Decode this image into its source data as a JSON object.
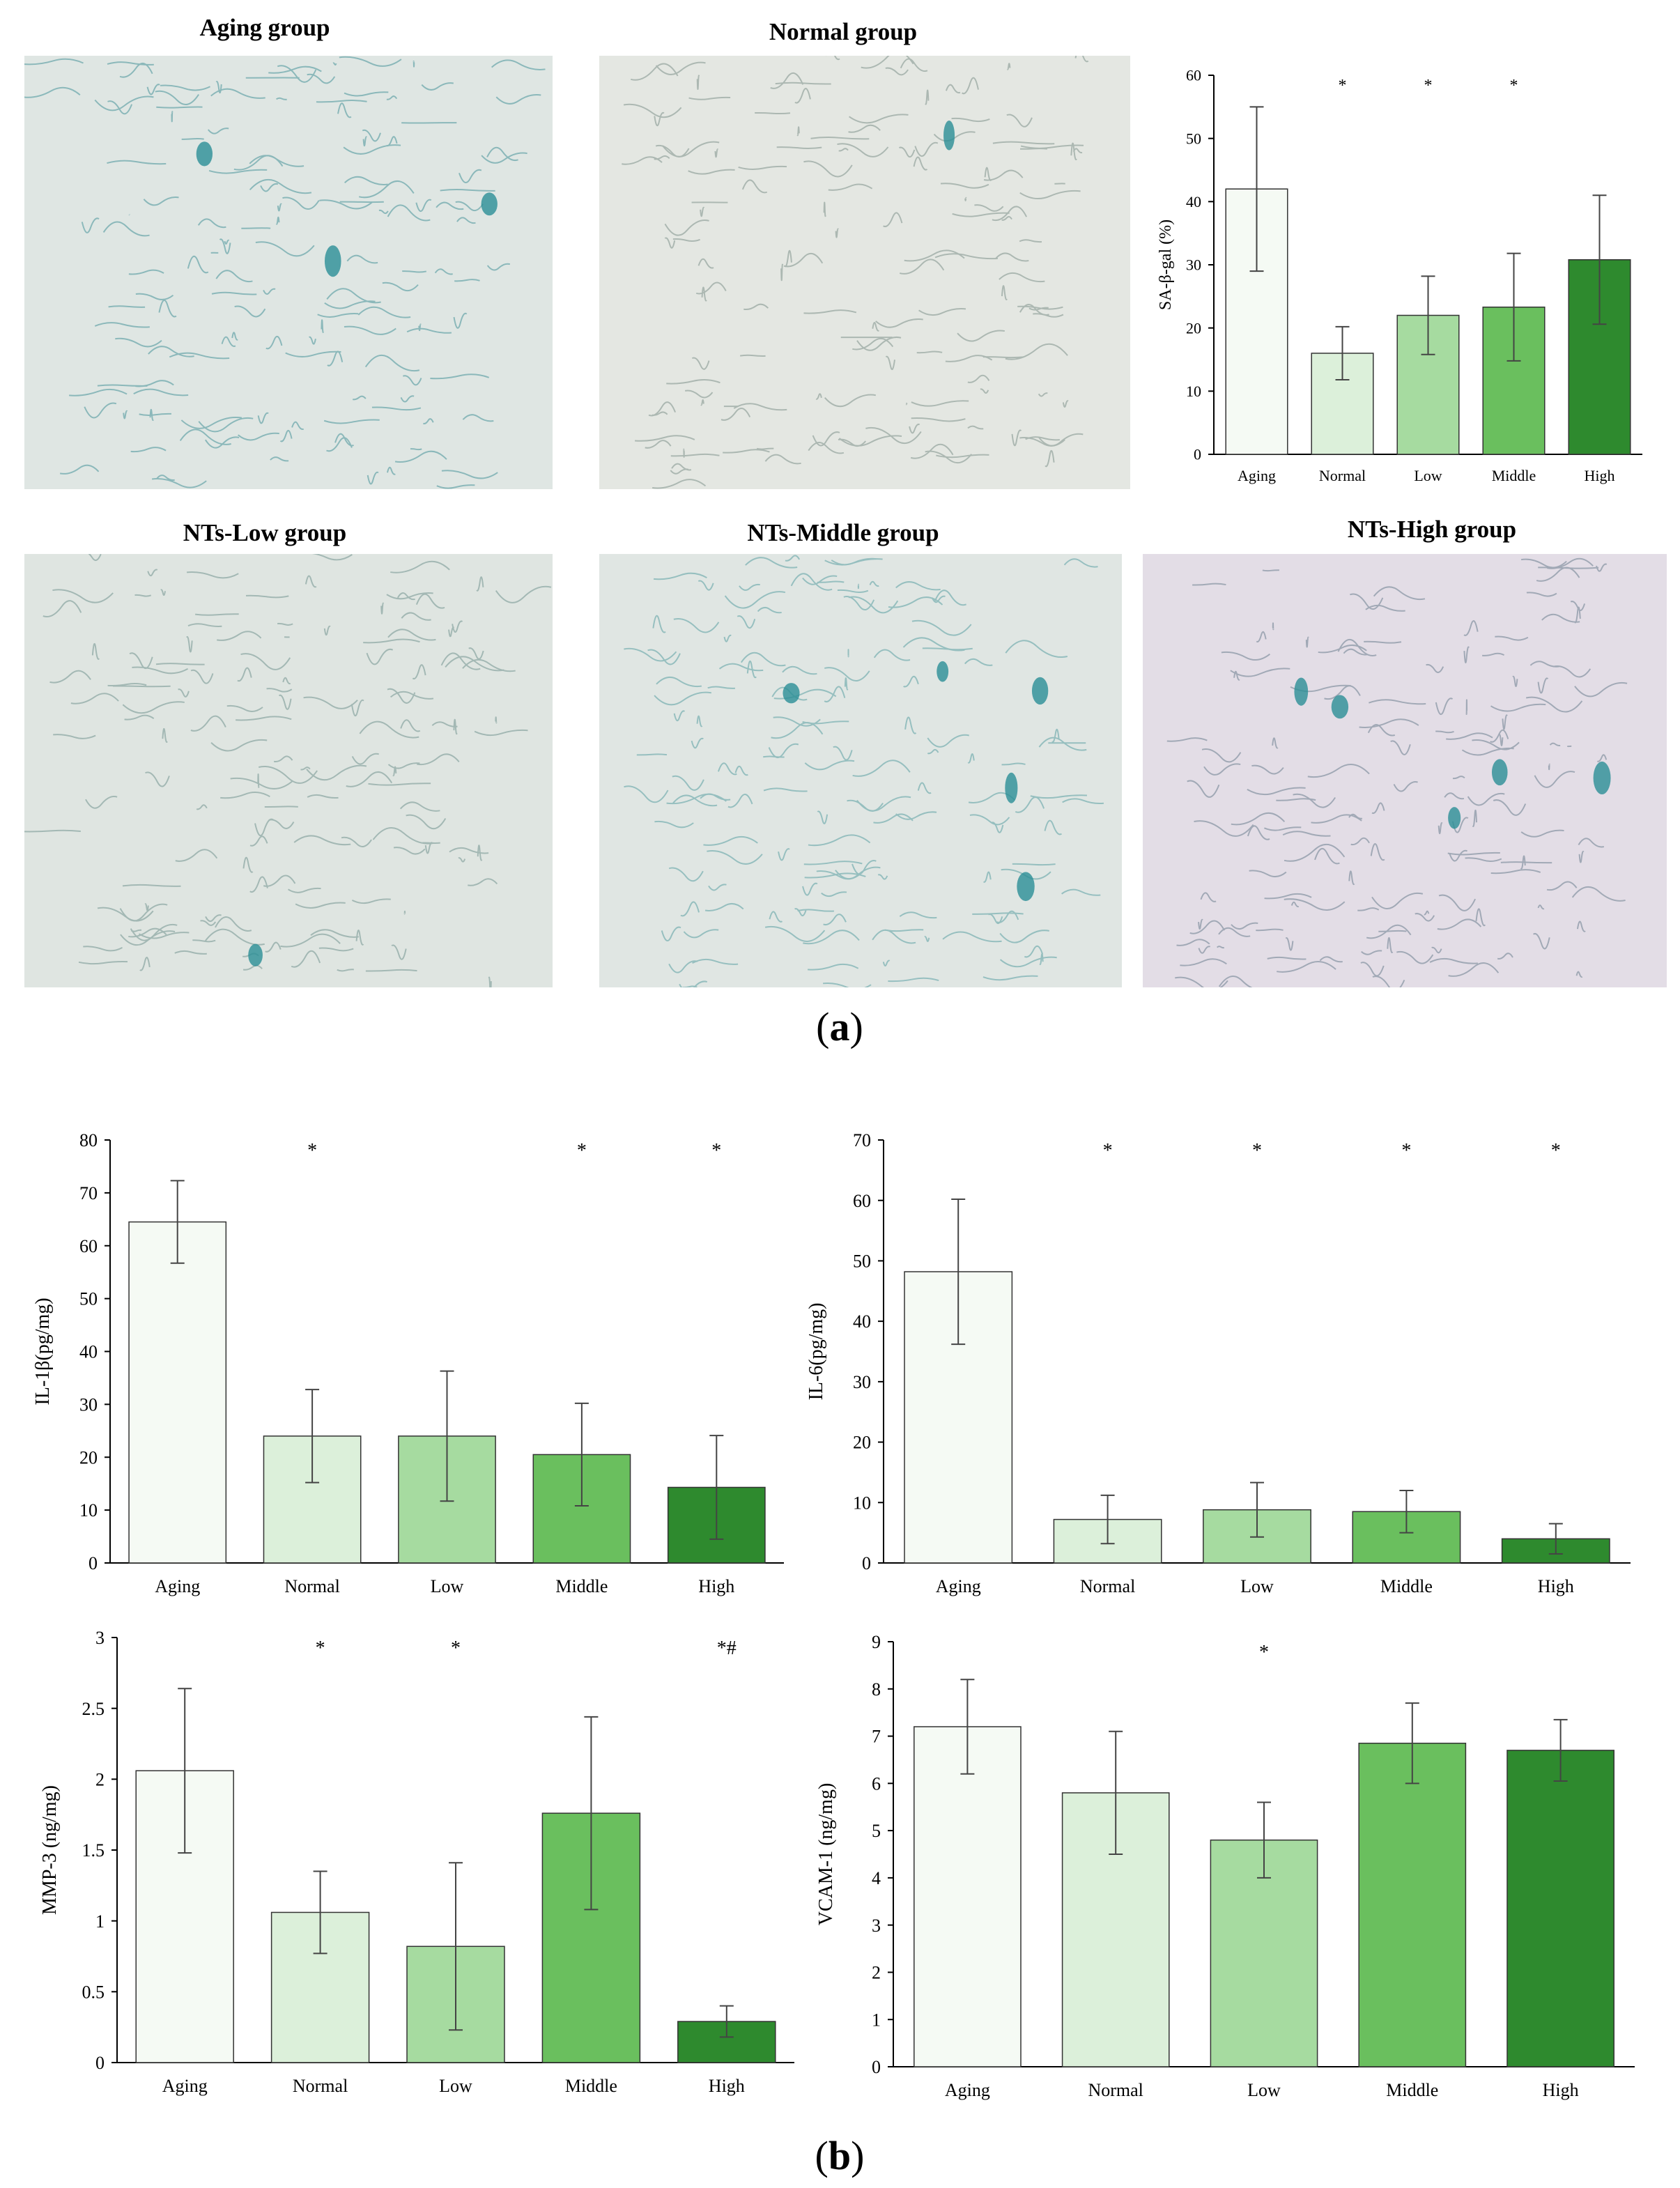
{
  "panel_a": {
    "label": "a",
    "micrographs": [
      {
        "title": "Aging group",
        "tint": "#dfe6e3",
        "fiber": "#6fa9ad"
      },
      {
        "title": "Normal group",
        "tint": "#e4e7e2",
        "fiber": "#9aa9a3"
      },
      {
        "title": "NTs-Low group",
        "tint": "#dfe5e1",
        "fiber": "#8faaa6"
      },
      {
        "title": "NTs-Middle group",
        "tint": "#e0e6e3",
        "fiber": "#7eb2b4"
      },
      {
        "title": "NTs-High group",
        "tint": "#e3dde6",
        "fiber": "#8c98a6"
      }
    ]
  },
  "panel_b": {
    "label": "b"
  },
  "colors": {
    "Aging": "#f5faf4",
    "Normal": "#dcf0da",
    "Low": "#a6dba0",
    "Middle": "#6abf5e",
    "High": "#2e8a2e",
    "stain": "#2a8f96"
  },
  "chart_data": [
    {
      "type": "bar",
      "categories": [
        "Aging",
        "Normal",
        "Low",
        "Middle",
        "High"
      ],
      "values": [
        42,
        16,
        22,
        23.3,
        30.8
      ],
      "errors": [
        13,
        4.2,
        6.2,
        8.5,
        10.2
      ],
      "annotations": [
        "",
        "*",
        "*",
        "*",
        ""
      ],
      "ylabel": "SA-β-gal (%)",
      "ylim": [
        0,
        60
      ],
      "yticks": [
        0,
        10,
        20,
        30,
        40,
        50,
        60
      ]
    },
    {
      "type": "bar",
      "categories": [
        "Aging",
        "Normal",
        "Low",
        "Middle",
        "High"
      ],
      "values": [
        64.5,
        24,
        24,
        20.5,
        14.3
      ],
      "errors": [
        7.8,
        8.8,
        12.3,
        9.7,
        9.8
      ],
      "annotations": [
        "",
        "*",
        "",
        "*",
        "*"
      ],
      "ylabel": "IL-1β(pg/mg)",
      "ylim": [
        0,
        80
      ],
      "yticks": [
        0,
        10,
        20,
        30,
        40,
        50,
        60,
        70,
        80
      ]
    },
    {
      "type": "bar",
      "categories": [
        "Aging",
        "Normal",
        "Low",
        "Middle",
        "High"
      ],
      "values": [
        48.2,
        7.2,
        8.8,
        8.5,
        4.0
      ],
      "errors": [
        12,
        4,
        4.5,
        3.5,
        2.5
      ],
      "annotations": [
        "",
        "*",
        "*",
        "*",
        "*"
      ],
      "ylabel": "IL-6(pg/mg)",
      "ylim": [
        0,
        70
      ],
      "yticks": [
        0,
        10,
        20,
        30,
        40,
        50,
        60,
        70
      ]
    },
    {
      "type": "bar",
      "categories": [
        "Aging",
        "Normal",
        "Low",
        "Middle",
        "High"
      ],
      "values": [
        2.06,
        1.06,
        0.82,
        1.76,
        0.29
      ],
      "errors": [
        0.58,
        0.29,
        0.59,
        0.68,
        0.11
      ],
      "annotations": [
        "",
        "*",
        "*",
        "",
        "*#"
      ],
      "ylabel": "MMP-3 (ng/mg)",
      "ylim": [
        0,
        3
      ],
      "yticks": [
        0,
        0.5,
        1,
        1.5,
        2,
        2.5,
        3
      ]
    },
    {
      "type": "bar",
      "categories": [
        "Aging",
        "Normal",
        "Low",
        "Middle",
        "High"
      ],
      "values": [
        7.2,
        5.8,
        4.8,
        6.85,
        6.7
      ],
      "errors": [
        1.0,
        1.3,
        0.8,
        0.85,
        0.65
      ],
      "annotations": [
        "",
        "",
        "*",
        "",
        ""
      ],
      "ylabel": "VCAM-1 (ng/mg)",
      "ylim": [
        0,
        9
      ],
      "yticks": [
        0,
        1,
        2,
        3,
        4,
        5,
        6,
        7,
        8,
        9
      ]
    }
  ]
}
